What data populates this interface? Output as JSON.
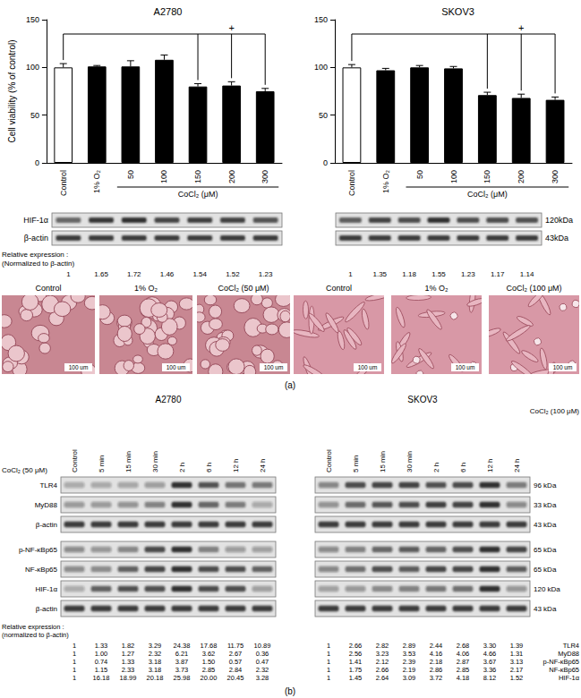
{
  "chart_data": [
    {
      "type": "bar",
      "title": "A2780",
      "categories": [
        "Control",
        "1% O₂",
        "50",
        "100",
        "150",
        "200",
        "300"
      ],
      "values": [
        100,
        101,
        101,
        108,
        80,
        81,
        75
      ],
      "errors": [
        4,
        1,
        6,
        5,
        3,
        4,
        3
      ],
      "colors": [
        "#ffffff",
        "#000000",
        "#000000",
        "#000000",
        "#000000",
        "#000000",
        "#000000"
      ],
      "ylim": [
        0,
        150
      ],
      "yticks": [
        0,
        50,
        100,
        150
      ],
      "ylabel": "Cell viability (% of control)",
      "xgroup": {
        "label": "CoCl₂ (μM)",
        "categories": [
          "50",
          "100",
          "150",
          "200",
          "300"
        ]
      },
      "significance": {
        "label": "+",
        "from": "Control",
        "to": [
          "150",
          "200",
          "300"
        ]
      }
    },
    {
      "type": "bar",
      "title": "SKOV3",
      "categories": [
        "Control",
        "1% O₂",
        "50",
        "100",
        "150",
        "200",
        "300"
      ],
      "values": [
        100,
        97,
        100,
        99,
        71,
        68,
        66
      ],
      "errors": [
        3,
        2,
        2,
        2,
        3,
        4,
        3
      ],
      "colors": [
        "#ffffff",
        "#000000",
        "#000000",
        "#000000",
        "#000000",
        "#000000",
        "#000000"
      ],
      "ylim": [
        0,
        150
      ],
      "yticks": [
        0,
        50,
        100,
        150
      ],
      "xgroup": {
        "label": "CoCl₂ (μM)",
        "categories": [
          "50",
          "100",
          "150",
          "200",
          "300"
        ]
      },
      "significance": {
        "label": "+",
        "from": "Control",
        "to": [
          "150",
          "200",
          "300"
        ]
      }
    }
  ],
  "panel_a_blots": {
    "rows": [
      "HIF-1α",
      "β-actin"
    ],
    "kda": [
      "120kDa",
      "43kDa"
    ],
    "relative_label": [
      "Relative expression :",
      "(Normalized to β-actin)"
    ],
    "relative_expression": [
      [
        "1",
        "1.65",
        "1.72",
        "1.46",
        "1.54",
        "1.52",
        "1.23"
      ],
      [
        "1",
        "1.35",
        "1.18",
        "1.55",
        "1.23",
        "1.17",
        "1.14"
      ]
    ]
  },
  "panel_a_images": {
    "scale_bar": "100 um",
    "panels": [
      [
        "Control",
        "1% O₂",
        "CoCl₂ (50 μM)"
      ],
      [
        "Control",
        "1% O₂",
        "CoCl₂ (100 μM)"
      ]
    ]
  },
  "panel_b": {
    "blots": [
      {
        "cell_line": "A2780",
        "treatment": "CoCl₂ (50 μM)"
      },
      {
        "cell_line": "SKOV3",
        "treatment": "CoCl₂ (100 μM)"
      }
    ],
    "columns": [
      "Control",
      "5 min",
      "15 min",
      "30 min",
      "2 h",
      "6 h",
      "12 h",
      "24 h"
    ],
    "rows": [
      "TLR4",
      "MyD88",
      "β-actin",
      "p-NF-κBp65",
      "NF-κBp65",
      "HIF-1α",
      "β-actin"
    ],
    "kda": [
      "96 kDa",
      "33 kDa",
      "43 kDa",
      "65 kDa",
      "65 kDa",
      "120 kDa",
      "43 kDa"
    ],
    "relative_label": [
      "Relative expression :",
      "(normalized to β-actin)"
    ],
    "table_rows": [
      "TLR4",
      "MyD88",
      "p-NF-κBp65",
      "NF-κBp65",
      "HIF-1α"
    ],
    "relative_expression": [
      [
        [
          "1",
          "1.33",
          "1.82",
          "3.29",
          "24.38",
          "17.68",
          "11.75",
          "10.89"
        ],
        [
          "1",
          "1.00",
          "1.27",
          "2.32",
          "6.21",
          "3.62",
          "2.67",
          "0.36"
        ],
        [
          "1",
          "0.74",
          "1.33",
          "3.18",
          "3.87",
          "1.50",
          "0.57",
          "0.47"
        ],
        [
          "1",
          "1.15",
          "2.33",
          "3.18",
          "3.73",
          "2.85",
          "2.84",
          "2.32"
        ],
        [
          "1",
          "16.18",
          "18.99",
          "20.18",
          "25.98",
          "20.00",
          "20.45",
          "3.28"
        ]
      ],
      [
        [
          "1",
          "2.66",
          "2.82",
          "2.89",
          "2.44",
          "2.68",
          "3.30",
          "1.39"
        ],
        [
          "1",
          "2.56",
          "3.23",
          "3.53",
          "4.16",
          "4.06",
          "4.66",
          "1.31"
        ],
        [
          "1",
          "1.41",
          "2.12",
          "2.39",
          "2.18",
          "2.87",
          "3.67",
          "3.13"
        ],
        [
          "1",
          "1.75",
          "2.66",
          "2.19",
          "2.86",
          "2.85",
          "3.36",
          "2.17"
        ],
        [
          "1",
          "1.45",
          "2.64",
          "3.09",
          "3.72",
          "4.18",
          "8.12",
          "1.52"
        ]
      ]
    ]
  },
  "panel_labels": [
    "(a)",
    "(b)"
  ]
}
